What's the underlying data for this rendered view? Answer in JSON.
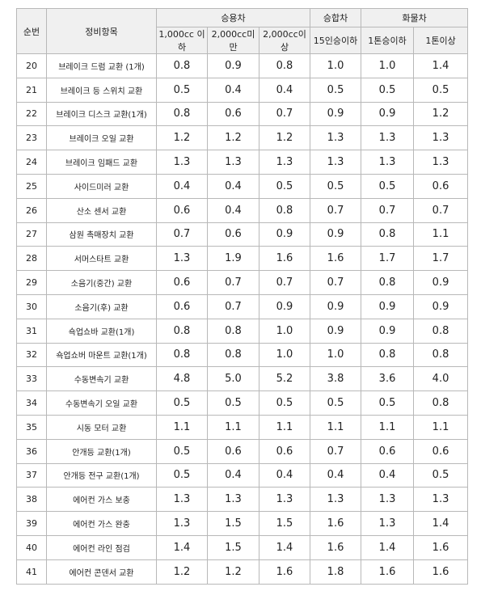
{
  "table": {
    "header": {
      "no": "순번",
      "item": "정비항목",
      "groups": [
        "승용차",
        "승합차",
        "화물차"
      ],
      "sub": [
        "1,000cc 이하",
        "2,000cc미만",
        "2,000cc이상",
        "15인승이하",
        "1톤승이하",
        "1톤이상"
      ]
    },
    "rows": [
      [
        "20",
        "브레이크 드럼 교환 (1개)",
        "0.8",
        "0.9",
        "0.8",
        "1.0",
        "1.0",
        "1.4"
      ],
      [
        "21",
        "브레이크 등 스위치 교환",
        "0.5",
        "0.4",
        "0.4",
        "0.5",
        "0.5",
        "0.5"
      ],
      [
        "22",
        "브레이크 디스크 교환(1개)",
        "0.8",
        "0.6",
        "0.7",
        "0.9",
        "0.9",
        "1.2"
      ],
      [
        "23",
        "브레이크 오일 교환",
        "1.2",
        "1.2",
        "1.2",
        "1.3",
        "1.3",
        "1.3"
      ],
      [
        "24",
        "브레이크 임패드 교환",
        "1.3",
        "1.3",
        "1.3",
        "1.3",
        "1.3",
        "1.3"
      ],
      [
        "25",
        "사이드미러 교환",
        "0.4",
        "0.4",
        "0.5",
        "0.5",
        "0.5",
        "0.6"
      ],
      [
        "26",
        "산소 센서 교환",
        "0.6",
        "0.4",
        "0.8",
        "0.7",
        "0.7",
        "0.7"
      ],
      [
        "27",
        "삼원 촉매장치 교환",
        "0.7",
        "0.6",
        "0.9",
        "0.9",
        "0.8",
        "1.1"
      ],
      [
        "28",
        "서머스타트 교환",
        "1.3",
        "1.9",
        "1.6",
        "1.6",
        "1.7",
        "1.7"
      ],
      [
        "29",
        "소음기(중간) 교환",
        "0.6",
        "0.7",
        "0.7",
        "0.7",
        "0.8",
        "0.9"
      ],
      [
        "30",
        "소음기(후) 교환",
        "0.6",
        "0.7",
        "0.9",
        "0.9",
        "0.9",
        "0.9"
      ],
      [
        "31",
        "쇽업쇼바 교환(1개)",
        "0.8",
        "0.8",
        "1.0",
        "0.9",
        "0.9",
        "0.8"
      ],
      [
        "32",
        "쇽업쇼버 마운트 교환(1개)",
        "0.8",
        "0.8",
        "1.0",
        "1.0",
        "0.8",
        "0.8"
      ],
      [
        "33",
        "수동변속기 교환",
        "4.8",
        "5.0",
        "5.2",
        "3.8",
        "3.6",
        "4.0"
      ],
      [
        "34",
        "수동변속기 오일 교환",
        "0.5",
        "0.5",
        "0.5",
        "0.5",
        "0.5",
        "0.8"
      ],
      [
        "35",
        "시동 모터 교환",
        "1.1",
        "1.1",
        "1.1",
        "1.1",
        "1.1",
        "1.1"
      ],
      [
        "36",
        "안개등 교환(1개)",
        "0.5",
        "0.6",
        "0.6",
        "0.7",
        "0.6",
        "0.6"
      ],
      [
        "37",
        "안개등 전구 교환(1개)",
        "0.5",
        "0.4",
        "0.4",
        "0.4",
        "0.4",
        "0.5"
      ],
      [
        "38",
        "에어컨 가스 보충",
        "1.3",
        "1.3",
        "1.3",
        "1.3",
        "1.3",
        "1.3"
      ],
      [
        "39",
        "에어컨 가스 완충",
        "1.3",
        "1.5",
        "1.5",
        "1.6",
        "1.3",
        "1.4"
      ],
      [
        "40",
        "에어컨 라인 점검",
        "1.4",
        "1.5",
        "1.4",
        "1.6",
        "1.4",
        "1.6"
      ],
      [
        "41",
        "에어컨 콘덴서 교환",
        "1.2",
        "1.2",
        "1.6",
        "1.8",
        "1.6",
        "1.6"
      ]
    ]
  }
}
